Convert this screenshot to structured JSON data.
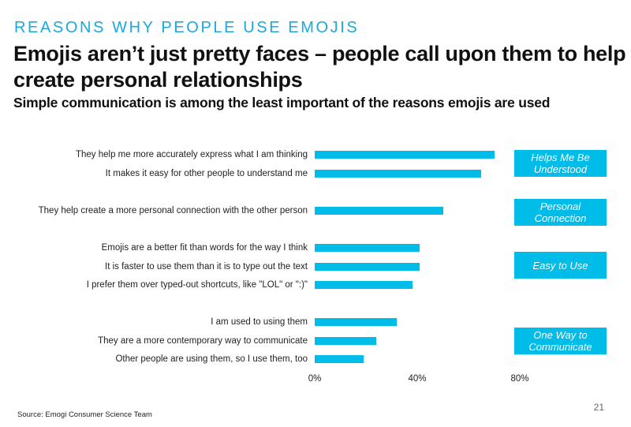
{
  "kicker": "REASONS WHY PEOPLE USE EMOJIS",
  "headline": "Emojis aren’t just pretty faces – people call upon them to help create personal relationships",
  "subheadline": "Simple communication is among the least important of the reasons emojis are used",
  "source": "Source: Emogi Consumer Science Team",
  "page_number": "21",
  "colors": {
    "bar": "#00bce8",
    "kicker": "#1aa9dd"
  },
  "chart_data": {
    "type": "bar",
    "orientation": "horizontal",
    "categories": [
      "They help me more accurately express what I am thinking",
      "It makes it easy for other people to understand me",
      "They help create a more personal connection with the other person",
      "Emojis are a better fit than words for the way I think",
      "It is faster to use them than it is to type out the text",
      "I prefer them over typed-out shortcuts, like \"LOL\" or \":)\"",
      "I am used to using them",
      "They are a more contemporary way to communicate",
      "Other people are using them, so I use them, too"
    ],
    "values": [
      70,
      65,
      50,
      41,
      41,
      38,
      32,
      24,
      19
    ],
    "unit": "%",
    "xlim": [
      0,
      80
    ],
    "ticks": [
      "0%",
      "40%",
      "80%"
    ],
    "grid": false,
    "groups": [
      {
        "label": "Helps Me Be Understood",
        "members": [
          0,
          1
        ]
      },
      {
        "label": "Personal Connection",
        "members": [
          2
        ]
      },
      {
        "label": "Easy to Use",
        "members": [
          3,
          4,
          5
        ]
      },
      {
        "label": "One Way to Communicate",
        "members": [
          6,
          7,
          8
        ]
      }
    ]
  }
}
